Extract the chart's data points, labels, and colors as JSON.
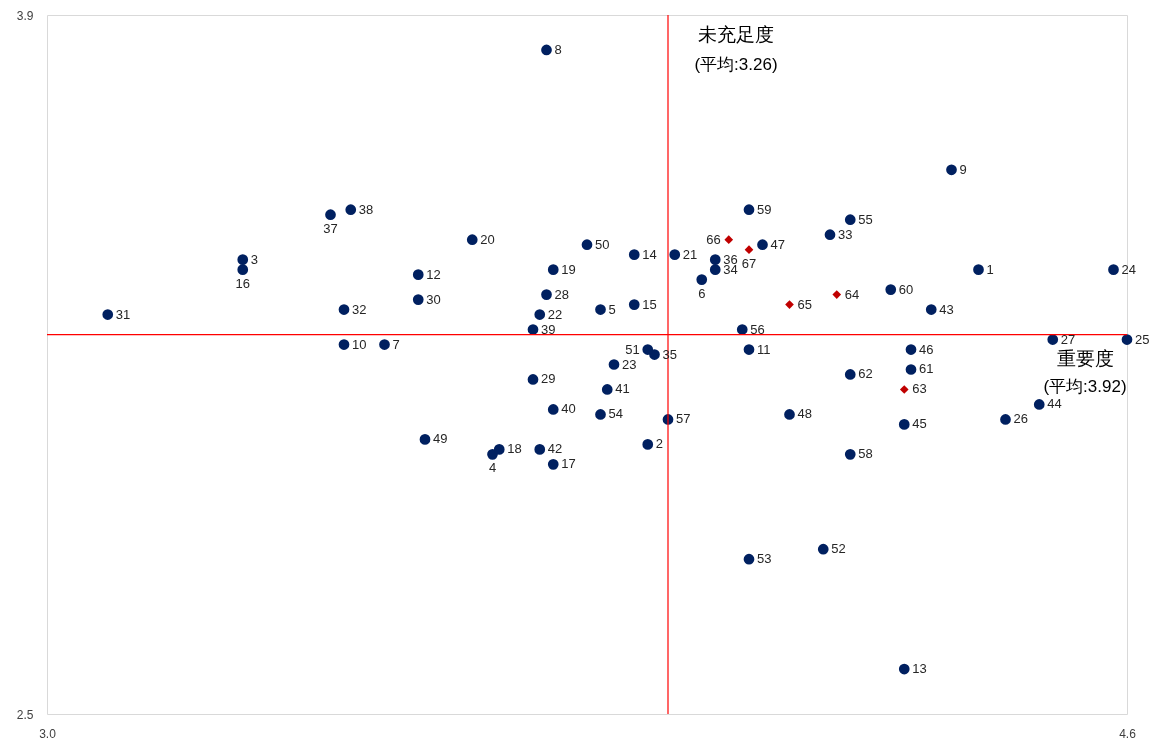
{
  "chart_data": {
    "type": "scatter",
    "xlabel": "重要度",
    "ylabel": "未充足度",
    "xlim": [
      3.0,
      4.6
    ],
    "ylim": [
      2.5,
      3.9
    ],
    "xticks": [
      {
        "value": 3.0,
        "label": "3.0"
      },
      {
        "value": 4.6,
        "label": "4.6"
      }
    ],
    "yticks": [
      {
        "value": 2.5,
        "label": "2.5"
      },
      {
        "value": 3.9,
        "label": "3.9"
      }
    ],
    "ref_lines": [
      {
        "axis": "x",
        "value": 3.92,
        "color": "#ff0000"
      },
      {
        "axis": "y",
        "value": 3.26,
        "color": "#ff0000"
      }
    ],
    "series": [
      {
        "color": "#002060",
        "marker": "circle",
        "x": [
          4.38,
          3.89,
          3.29,
          3.66,
          3.82,
          3.97,
          3.5,
          3.74,
          4.34,
          3.44,
          4.04,
          3.55,
          4.27,
          3.87,
          3.87,
          3.29,
          3.75,
          3.67,
          3.75,
          3.63,
          3.93,
          3.73,
          3.84,
          4.58,
          4.6,
          4.42,
          4.49,
          3.74,
          3.72,
          3.55,
          3.09,
          3.44,
          4.16,
          3.99,
          3.9,
          3.99,
          3.42,
          3.45,
          3.72,
          3.75,
          3.83,
          3.73,
          4.31,
          4.47,
          4.27,
          4.28,
          4.06,
          4.1,
          3.56,
          3.8,
          3.89,
          4.15,
          4.04,
          3.82,
          4.19,
          4.03,
          3.92,
          4.19,
          4.04,
          4.25,
          4.28,
          4.19
        ],
        "values": [
          3.39,
          3.04,
          3.41,
          3.02,
          3.31,
          3.37,
          3.24,
          3.83,
          3.59,
          3.24,
          3.23,
          3.38,
          2.59,
          3.42,
          3.32,
          3.39,
          3.0,
          3.03,
          3.39,
          3.45,
          3.42,
          3.3,
          3.2,
          3.39,
          3.25,
          3.09,
          3.25,
          3.34,
          3.17,
          3.33,
          3.3,
          3.31,
          3.46,
          3.39,
          3.22,
          3.41,
          3.5,
          3.51,
          3.27,
          3.11,
          3.15,
          3.03,
          3.31,
          3.12,
          3.08,
          3.23,
          3.44,
          3.1,
          3.05,
          3.44,
          3.23,
          2.83,
          2.81,
          3.1,
          3.49,
          3.27,
          3.09,
          3.02,
          3.51,
          3.35,
          3.19,
          3.18
        ]
      },
      {
        "color": "#c00000",
        "marker": "diamond",
        "x": [
          4.27,
          4.17,
          4.1,
          4.01,
          4.04
        ],
        "values": [
          3.15,
          3.34,
          3.32,
          3.45,
          3.43
        ]
      }
    ],
    "annotations": [
      "(平均:3.26)",
      "(平均:3.92)",
      {
        "text": "1",
        "x": 4.38,
        "y": 3.39
      },
      {
        "text": "2",
        "x": 3.89,
        "y": 3.04
      },
      {
        "text": "3",
        "x": 3.29,
        "y": 3.41
      },
      {
        "text": "4",
        "x": 3.66,
        "y": 3.02
      },
      {
        "text": "5",
        "x": 3.82,
        "y": 3.31
      },
      {
        "text": "6",
        "x": 3.97,
        "y": 3.37
      },
      {
        "text": "7",
        "x": 3.5,
        "y": 3.24
      },
      {
        "text": "8",
        "x": 3.74,
        "y": 3.83
      },
      {
        "text": "9",
        "x": 4.34,
        "y": 3.59
      },
      {
        "text": "10",
        "x": 3.44,
        "y": 3.24
      },
      {
        "text": "11",
        "x": 4.04,
        "y": 3.23
      },
      {
        "text": "12",
        "x": 3.55,
        "y": 3.38
      },
      {
        "text": "13",
        "x": 4.27,
        "y": 2.59
      },
      {
        "text": "14",
        "x": 3.87,
        "y": 3.42
      },
      {
        "text": "15",
        "x": 3.87,
        "y": 3.32
      },
      {
        "text": "16",
        "x": 3.29,
        "y": 3.39
      },
      {
        "text": "17",
        "x": 3.75,
        "y": 3.0
      },
      {
        "text": "18",
        "x": 3.67,
        "y": 3.03
      },
      {
        "text": "19",
        "x": 3.75,
        "y": 3.39
      },
      {
        "text": "20",
        "x": 3.63,
        "y": 3.45
      },
      {
        "text": "21",
        "x": 3.93,
        "y": 3.42
      },
      {
        "text": "22",
        "x": 3.73,
        "y": 3.3
      },
      {
        "text": "23",
        "x": 3.84,
        "y": 3.2
      },
      {
        "text": "24",
        "x": 4.58,
        "y": 3.39
      },
      {
        "text": "25",
        "x": 4.6,
        "y": 3.25
      },
      {
        "text": "26",
        "x": 4.42,
        "y": 3.09
      },
      {
        "text": "27",
        "x": 4.49,
        "y": 3.25
      },
      {
        "text": "28",
        "x": 3.74,
        "y": 3.34
      },
      {
        "text": "29",
        "x": 3.72,
        "y": 3.17
      },
      {
        "text": "30",
        "x": 3.55,
        "y": 3.33
      },
      {
        "text": "31",
        "x": 3.09,
        "y": 3.3
      },
      {
        "text": "32",
        "x": 3.44,
        "y": 3.31
      },
      {
        "text": "33",
        "x": 4.16,
        "y": 3.46
      },
      {
        "text": "34",
        "x": 3.99,
        "y": 3.39
      },
      {
        "text": "35",
        "x": 3.9,
        "y": 3.22
      },
      {
        "text": "36",
        "x": 3.99,
        "y": 3.41
      },
      {
        "text": "37",
        "x": 3.42,
        "y": 3.5
      },
      {
        "text": "38",
        "x": 3.45,
        "y": 3.51
      },
      {
        "text": "39",
        "x": 3.72,
        "y": 3.27
      },
      {
        "text": "40",
        "x": 3.75,
        "y": 3.11
      },
      {
        "text": "41",
        "x": 3.83,
        "y": 3.15
      },
      {
        "text": "42",
        "x": 3.73,
        "y": 3.03
      },
      {
        "text": "43",
        "x": 4.31,
        "y": 3.31
      },
      {
        "text": "44",
        "x": 4.47,
        "y": 3.12
      },
      {
        "text": "45",
        "x": 4.27,
        "y": 3.08
      },
      {
        "text": "46",
        "x": 4.28,
        "y": 3.23
      },
      {
        "text": "47",
        "x": 4.06,
        "y": 3.44
      },
      {
        "text": "48",
        "x": 4.1,
        "y": 3.1
      },
      {
        "text": "49",
        "x": 3.56,
        "y": 3.05
      },
      {
        "text": "50",
        "x": 3.8,
        "y": 3.44
      },
      {
        "text": "51",
        "x": 3.89,
        "y": 3.23
      },
      {
        "text": "52",
        "x": 4.15,
        "y": 2.83
      },
      {
        "text": "53",
        "x": 4.04,
        "y": 2.81
      },
      {
        "text": "54",
        "x": 3.82,
        "y": 3.1
      },
      {
        "text": "55",
        "x": 4.19,
        "y": 3.49
      },
      {
        "text": "56",
        "x": 4.03,
        "y": 3.27
      },
      {
        "text": "57",
        "x": 3.92,
        "y": 3.09
      },
      {
        "text": "58",
        "x": 4.19,
        "y": 3.02
      },
      {
        "text": "59",
        "x": 4.04,
        "y": 3.51
      },
      {
        "text": "60",
        "x": 4.25,
        "y": 3.35
      },
      {
        "text": "61",
        "x": 4.28,
        "y": 3.19
      },
      {
        "text": "62",
        "x": 4.19,
        "y": 3.18
      },
      {
        "text": "63",
        "x": 4.27,
        "y": 3.15
      },
      {
        "text": "64",
        "x": 4.17,
        "y": 3.34
      },
      {
        "text": "65",
        "x": 4.1,
        "y": 3.32
      },
      {
        "text": "66",
        "x": 4.01,
        "y": 3.45
      },
      {
        "text": "67",
        "x": 4.04,
        "y": 3.43
      }
    ]
  }
}
